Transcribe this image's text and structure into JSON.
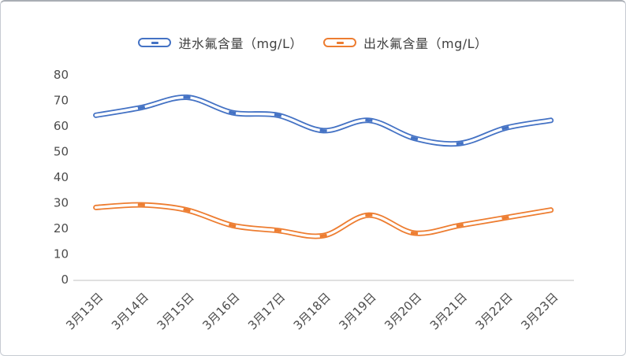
{
  "panel": {
    "background": "#ffffff",
    "border_color": "#c6cbd2"
  },
  "chart_data": {
    "type": "line",
    "title": "",
    "categories": [
      "3月13日",
      "3月14日",
      "3月15日",
      "3月16日",
      "3月17日",
      "3月18日",
      "3月19日",
      "3月20日",
      "3月21日",
      "3月22日",
      "3月23日"
    ],
    "series": [
      {
        "name": "进水氟含量（mg/L）",
        "color": "#4472C4",
        "values": [
          64,
          67,
          71,
          65,
          64,
          58,
          62,
          55,
          53,
          59,
          62
        ]
      },
      {
        "name": "出水氟含量（mg/L）",
        "color": "#ED7D31",
        "values": [
          28,
          29,
          27,
          21,
          19,
          17,
          25,
          18,
          21,
          24,
          27
        ]
      }
    ],
    "xlabel": "",
    "ylabel": "",
    "ylim": [
      0,
      80
    ],
    "yticks": [
      0,
      10,
      20,
      30,
      40,
      50,
      60,
      70,
      80
    ],
    "grid": false,
    "legend_position": "top-center",
    "line_style": "smooth outlined tube with dash markers",
    "x_label_rotation_deg": 45,
    "axis_line_color": "#d6d6d6",
    "tick_label_color": "#4c4c4c",
    "tube_inner_color": "#ffffff"
  }
}
